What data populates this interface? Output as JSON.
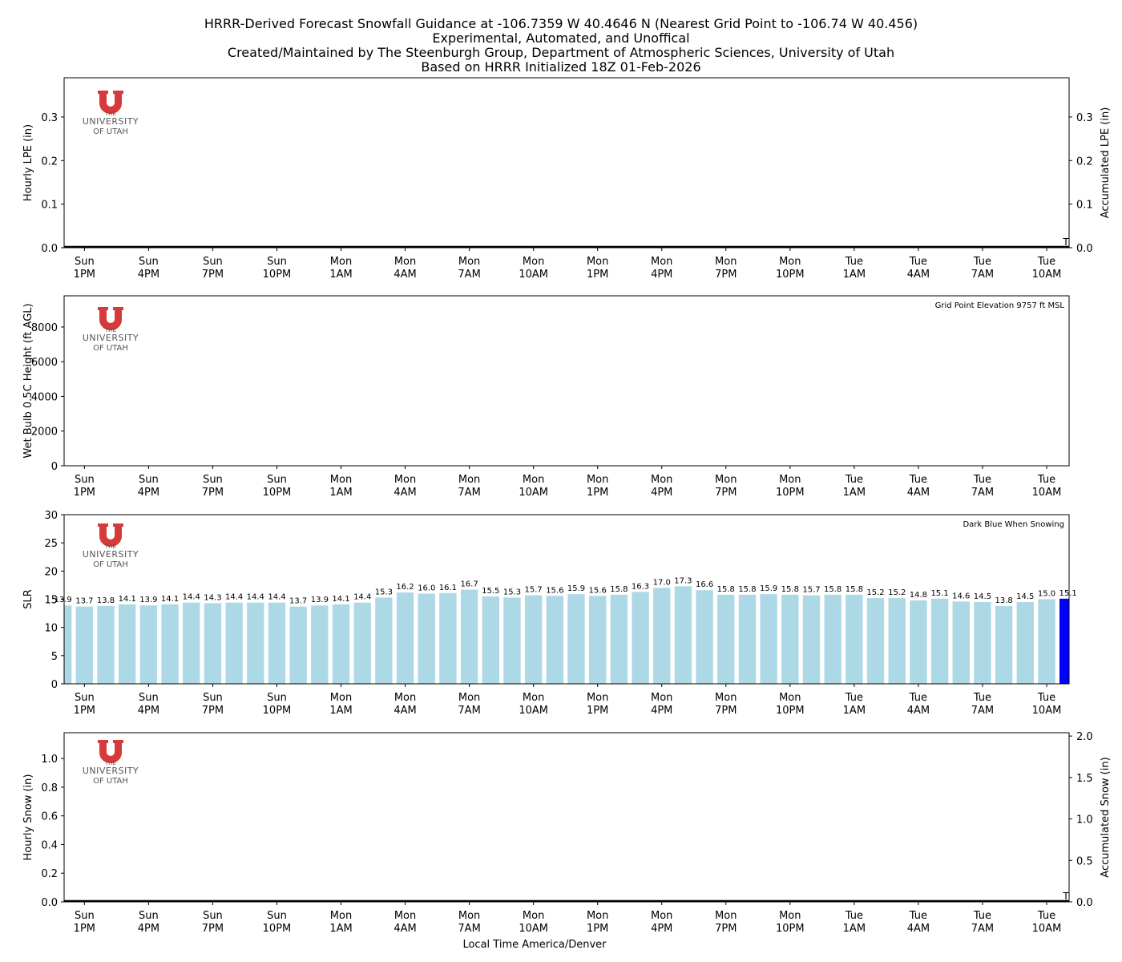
{
  "header": {
    "title_lines": [
      "HRRR-Derived Forecast Snowfall Guidance at -106.7359 W 40.4646 N (Nearest Grid Point to -106.74 W 40.456)",
      "Experimental, Automated, and Unoffical",
      "Created/Maintained by The Steenburgh Group, Department of Atmospheric Sciences, University of Utah",
      "Based on HRRR Initialized 18Z 01-Feb-2026"
    ]
  },
  "logo": {
    "line1": "THE",
    "line2": "UNIVERSITY",
    "line3": "OF UTAH",
    "color": "#d63a3a"
  },
  "x_axis": {
    "label": "Local Time America/Denver",
    "ticks": [
      [
        "Sun",
        "1PM"
      ],
      [
        "Sun",
        "4PM"
      ],
      [
        "Sun",
        "7PM"
      ],
      [
        "Sun",
        "10PM"
      ],
      [
        "Mon",
        "1AM"
      ],
      [
        "Mon",
        "4AM"
      ],
      [
        "Mon",
        "7AM"
      ],
      [
        "Mon",
        "10AM"
      ],
      [
        "Mon",
        "1PM"
      ],
      [
        "Mon",
        "4PM"
      ],
      [
        "Mon",
        "7PM"
      ],
      [
        "Mon",
        "10PM"
      ],
      [
        "Tue",
        "1AM"
      ],
      [
        "Tue",
        "4AM"
      ],
      [
        "Tue",
        "7AM"
      ],
      [
        "Tue",
        "10AM"
      ]
    ],
    "tick_hours": [
      1,
      4,
      7,
      10,
      13,
      16,
      19,
      22,
      25,
      28,
      31,
      34,
      37,
      40,
      43,
      46
    ],
    "hour_range": [
      0.05,
      47.05
    ]
  },
  "chart_data": [
    {
      "panel": "lpe",
      "type": "bar",
      "ylabel": "Hourly LPE (in)",
      "ylabel_right": "Accumulated LPE (in)",
      "ylim": [
        0,
        0.39
      ],
      "yticks": [
        "0.0",
        "0.1",
        "0.2",
        "0.3"
      ],
      "ytick_values": [
        0,
        0.1,
        0.2,
        0.3
      ],
      "trace_label": "T",
      "hourly_values": [],
      "accumulated": 0.0
    },
    {
      "panel": "wetbulb",
      "type": "line",
      "ylabel": "Wet Bulb 0.5C Height (ft AGL)",
      "ylim": [
        0,
        9800
      ],
      "yticks": [
        "0",
        "2000",
        "4000",
        "6000",
        "8000"
      ],
      "ytick_values": [
        0,
        2000,
        4000,
        6000,
        8000
      ],
      "annotation": "Grid Point Elevation 9757 ft MSL",
      "values": []
    },
    {
      "panel": "slr",
      "type": "bar",
      "ylabel": "SLR",
      "ylim": [
        0,
        30
      ],
      "yticks": [
        "0",
        "5",
        "10",
        "15",
        "20",
        "25",
        "30"
      ],
      "ytick_values": [
        0,
        5,
        10,
        15,
        20,
        25,
        30
      ],
      "annotation": "Dark Blue When Snowing",
      "bar_color": "#add8e6",
      "snowing_color": "#0000ff",
      "hours": [
        0,
        1,
        2,
        3,
        4,
        5,
        6,
        7,
        8,
        9,
        10,
        11,
        12,
        13,
        14,
        15,
        16,
        17,
        18,
        19,
        20,
        21,
        22,
        23,
        24,
        25,
        26,
        27,
        28,
        29,
        30,
        31,
        32,
        33,
        34,
        35,
        36,
        37,
        38,
        39,
        40,
        41,
        42,
        43,
        44,
        45,
        46,
        47
      ],
      "values": [
        13.9,
        13.7,
        13.8,
        14.1,
        13.9,
        14.1,
        14.4,
        14.3,
        14.4,
        14.4,
        14.4,
        13.7,
        13.9,
        14.1,
        14.4,
        15.3,
        16.2,
        16.0,
        16.1,
        16.7,
        15.5,
        15.3,
        15.7,
        15.6,
        15.9,
        15.6,
        15.8,
        16.3,
        17.0,
        17.3,
        16.6,
        15.8,
        15.8,
        15.9,
        15.8,
        15.7,
        15.8,
        15.8,
        15.2,
        15.2,
        14.8,
        15.1,
        14.6,
        14.5,
        13.8,
        14.5,
        15.0,
        15.1
      ],
      "labels": [
        "13.9",
        "13.7",
        "13.8",
        "14.1",
        "13.9",
        "14.1",
        "14.4",
        "14.3",
        "14.4",
        "14.4",
        "14.4",
        "13.7",
        "13.9",
        "14.1",
        "14.4",
        "15.3",
        "16.2",
        "16.0",
        "16.1",
        "16.7",
        "15.5",
        "15.3",
        "15.7",
        "15.6",
        "15.9",
        "15.6",
        "15.8",
        "16.3",
        "17.0",
        "17.3",
        "16.6",
        "15.8",
        "15.8",
        "15.9",
        "15.8",
        "15.7",
        "15.8",
        "15.8",
        "15.2",
        "15.2",
        "14.8",
        "15.1",
        "14.6",
        "14.5",
        "13.8",
        "14.5",
        "15.0",
        "15.1"
      ],
      "snowing": [
        47
      ]
    },
    {
      "panel": "snow",
      "type": "bar",
      "ylabel": "Hourly Snow (in)",
      "ylabel_right": "Accumulated Snow (in)",
      "ylim": [
        0,
        1.18
      ],
      "ylim_right": [
        0,
        2.04
      ],
      "yticks": [
        "0.0",
        "0.2",
        "0.4",
        "0.6",
        "0.8",
        "1.0"
      ],
      "ytick_values": [
        0,
        0.2,
        0.4,
        0.6,
        0.8,
        1.0
      ],
      "yticks_right": [
        "0.0",
        "0.5",
        "1.0",
        "1.5",
        "2.0"
      ],
      "ytick_values_right": [
        0,
        0.5,
        1.0,
        1.5,
        2.0
      ],
      "trace_label": "T",
      "hourly_values": [],
      "accumulated": 0.0
    }
  ]
}
